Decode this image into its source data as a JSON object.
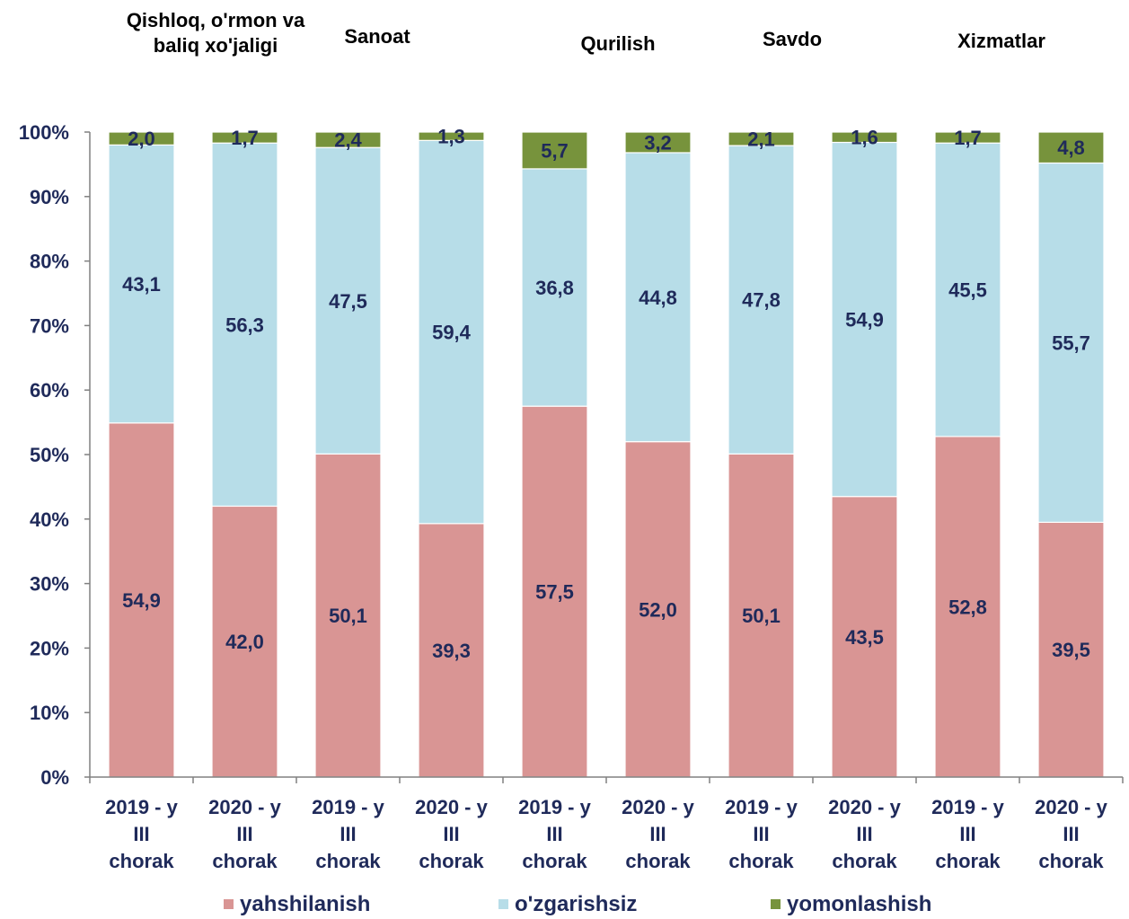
{
  "chart_data": {
    "type": "bar",
    "stacked": true,
    "percent_stacked": true,
    "group_titles": [
      [
        "Qishloq, o'rmon va",
        "baliq xo'jaligi"
      ],
      [
        "Sanoat"
      ],
      [
        "Qurilish"
      ],
      [
        "Savdo"
      ],
      [
        "Xizmatlar"
      ]
    ],
    "categories": [
      [
        "2019 - y",
        "III",
        "chorak"
      ],
      [
        "2020 - y",
        "III",
        "chorak"
      ],
      [
        "2019 - y",
        "III",
        "chorak"
      ],
      [
        "2020 - y",
        "III",
        "chorak"
      ],
      [
        "2019 - y",
        "III",
        "chorak"
      ],
      [
        "2020 - y",
        "III",
        "chorak"
      ],
      [
        "2019 - y",
        "III",
        "chorak"
      ],
      [
        "2020 - y",
        "III",
        "chorak"
      ],
      [
        "2019 - y",
        "III",
        "chorak"
      ],
      [
        "2020 - y",
        "III",
        "chorak"
      ]
    ],
    "series": [
      {
        "name": "yahshilanish",
        "color": "#d99594",
        "values": [
          54.9,
          42.0,
          50.1,
          39.3,
          57.5,
          52.0,
          50.1,
          43.5,
          52.8,
          39.5
        ],
        "labels": [
          "54,9",
          "42,0",
          "50,1",
          "39,3",
          "57,5",
          "52,0",
          "50,1",
          "43,5",
          "52,8",
          "39,5"
        ]
      },
      {
        "name": "o'zgarishsiz",
        "color": "#b7dde8",
        "values": [
          43.1,
          56.3,
          47.5,
          59.4,
          36.8,
          44.8,
          47.8,
          54.9,
          45.5,
          55.7
        ],
        "labels": [
          "43,1",
          "56,3",
          "47,5",
          "59,4",
          "36,8",
          "44,8",
          "47,8",
          "54,9",
          "45,5",
          "55,7"
        ]
      },
      {
        "name": "yomonlashish",
        "color": "#77933c",
        "values": [
          2.0,
          1.7,
          2.4,
          1.3,
          5.7,
          3.2,
          2.1,
          1.6,
          1.7,
          4.8
        ],
        "labels": [
          "2,0",
          "1,7",
          "2,4",
          "1,3",
          "5,7",
          "3,2",
          "2,1",
          "1,6",
          "1,7",
          "4,8"
        ]
      }
    ],
    "yticks": [
      "0%",
      "10%",
      "20%",
      "30%",
      "40%",
      "50%",
      "60%",
      "70%",
      "80%",
      "90%",
      "100%"
    ],
    "ylim": [
      0,
      100
    ],
    "grid": false,
    "legend_position": "bottom",
    "colors": {
      "text": "#1f2a5a",
      "axis": "#808080"
    }
  }
}
